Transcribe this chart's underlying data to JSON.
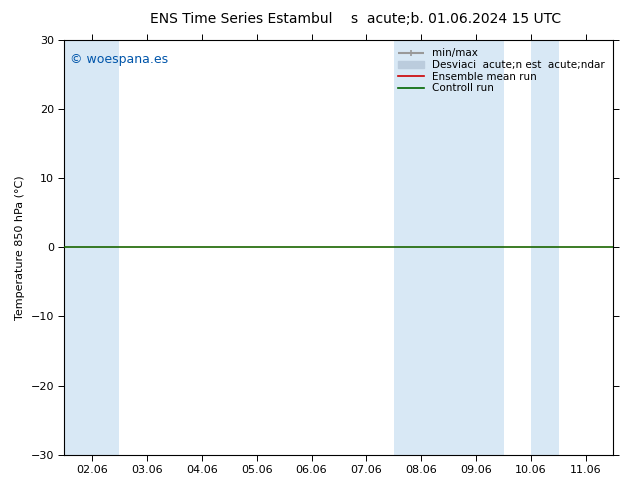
{
  "title_left": "ENS Time Series Estambul",
  "title_right": "s  acute;b. 01.06.2024 15 UTC",
  "ylabel": "Temperature 850 hPa (°C)",
  "ylim": [
    -30,
    30
  ],
  "yticks": [
    -30,
    -20,
    -10,
    0,
    10,
    20,
    30
  ],
  "xtick_labels": [
    "02.06",
    "03.06",
    "04.06",
    "05.06",
    "06.06",
    "07.06",
    "08.06",
    "09.06",
    "10.06",
    "11.06"
  ],
  "num_ticks": 10,
  "xlim": [
    0,
    9
  ],
  "background_color": "#ffffff",
  "plot_bg_color": "#ffffff",
  "shaded_bands": [
    {
      "x_start": 0,
      "x_end": 1,
      "color": "#d8e8f5"
    },
    {
      "x_start": 6,
      "x_end": 8,
      "color": "#d8e8f5"
    },
    {
      "x_start": 8.5,
      "x_end": 9,
      "color": "#d8e8f5"
    }
  ],
  "hline_y": 0,
  "hline_color": "#1a6600",
  "hline_lw": 1.2,
  "watermark": "© woespana.es",
  "watermark_color": "#0055aa",
  "watermark_fontsize": 9,
  "legend_labels": [
    "min/max",
    "Desviaci  acute;n est  acute;ndar",
    "Ensemble mean run",
    "Controll run"
  ],
  "legend_colors": [
    "#999999",
    "#bbccdd",
    "#cc0000",
    "#006600"
  ],
  "legend_lws": [
    1.5,
    6,
    1.2,
    1.2
  ],
  "title_fontsize": 10,
  "axis_fontsize": 8,
  "tick_fontsize": 8,
  "legend_fontsize": 7.5
}
